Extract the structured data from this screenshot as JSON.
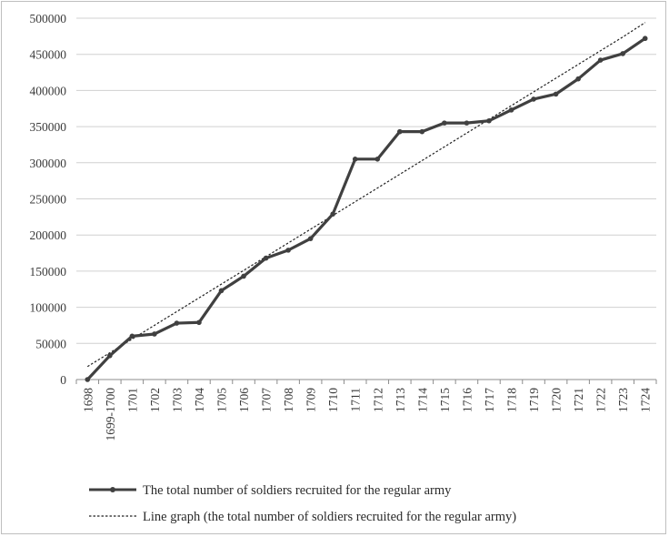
{
  "chart_data": {
    "type": "line",
    "title": "",
    "xlabel": "",
    "ylabel": "",
    "ylim": [
      0,
      500000
    ],
    "yticks": [
      0,
      50000,
      100000,
      150000,
      200000,
      250000,
      300000,
      350000,
      400000,
      450000,
      500000
    ],
    "grid": true,
    "legend_position": "bottom",
    "categories": [
      "1698",
      "1699-1700",
      "1701",
      "1702",
      "1703",
      "1704",
      "1705",
      "1706",
      "1707",
      "1708",
      "1709",
      "1710",
      "1711",
      "1712",
      "1713",
      "1714",
      "1715",
      "1716",
      "1717",
      "1718",
      "1719",
      "1720",
      "1721",
      "1722",
      "1723",
      "1724"
    ],
    "series": [
      {
        "name": "The total number of soldiers recruited for the regular army",
        "style": "solid-thick-with-markers",
        "color": "#404040",
        "values": [
          0,
          33000,
          60000,
          63000,
          78000,
          79000,
          123000,
          143000,
          168000,
          179000,
          195000,
          229000,
          305000,
          305000,
          343000,
          343000,
          355000,
          355000,
          358000,
          373000,
          388000,
          395000,
          416000,
          442000,
          451000,
          472000
        ]
      },
      {
        "name": "Line graph (the total number of soldiers recruited for the regular army)",
        "style": "dotted-trendline",
        "color": "#222222",
        "values": [
          18000,
          37000,
          56000,
          75000,
          94000,
          113000,
          132000,
          151000,
          170000,
          189000,
          208000,
          227000,
          246000,
          265000,
          284000,
          303000,
          322000,
          341000,
          360000,
          379000,
          398000,
          417000,
          436000,
          455000,
          474000,
          494000
        ]
      }
    ]
  }
}
